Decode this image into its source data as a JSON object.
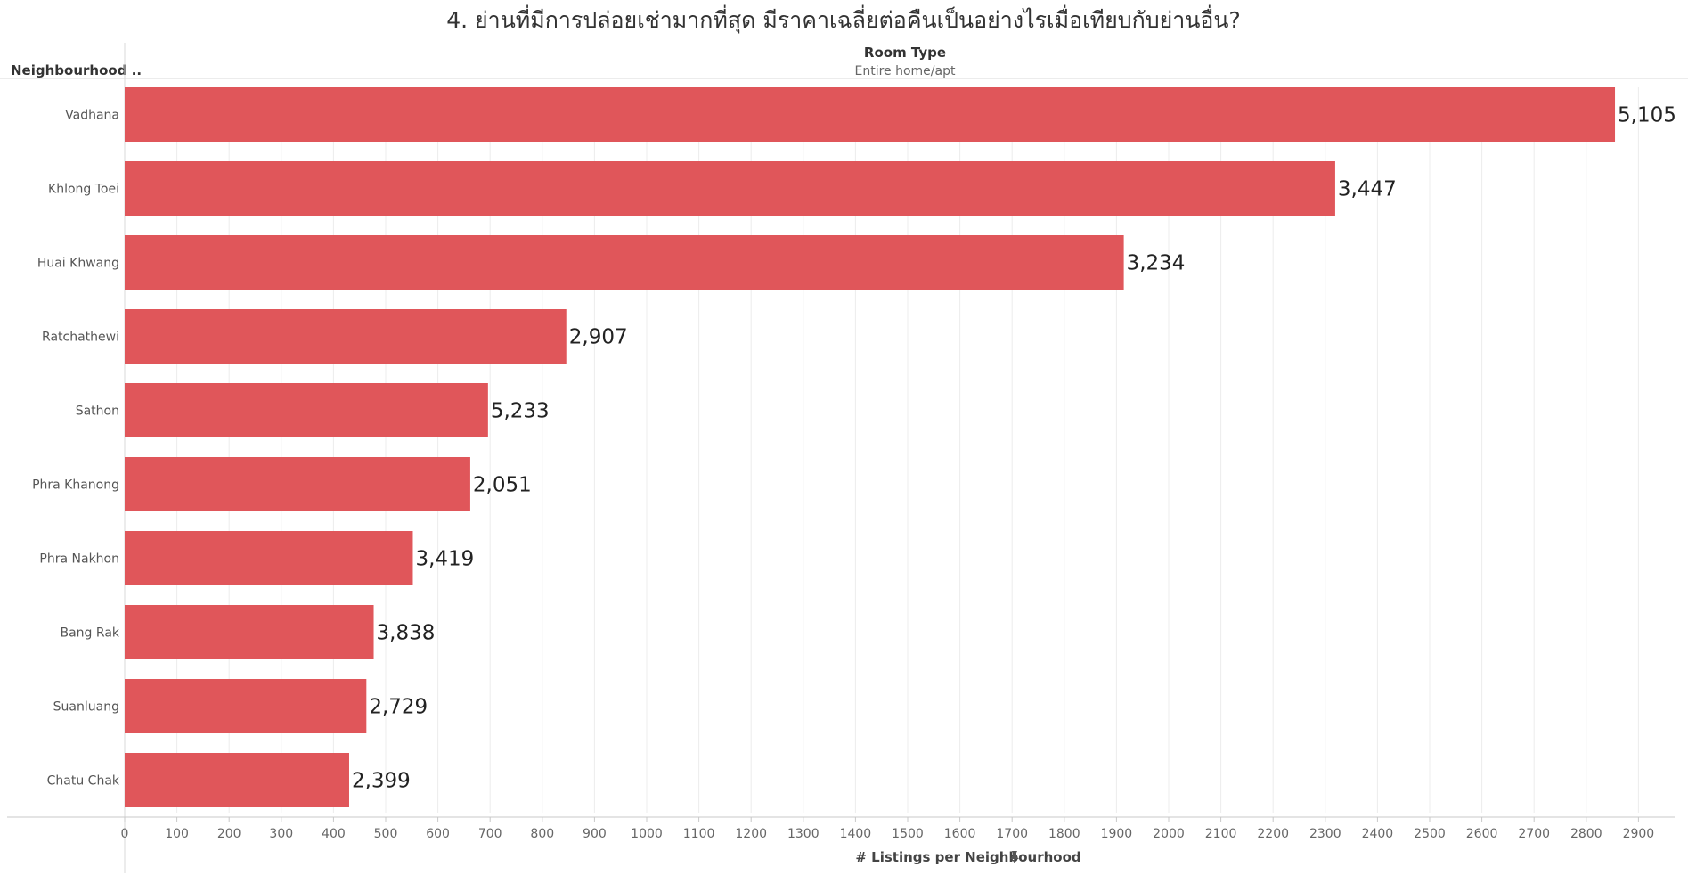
{
  "chart_data": {
    "type": "bar",
    "orientation": "horizontal",
    "title": "4. ย่านที่มีการปล่อยเช่ามากที่สุด มีราคาเฉลี่ยต่อคืนเป็นอย่างไรเมื่อเทียบกับย่านอื่น?",
    "row_header": "Neighbourhood ..",
    "column_header": "Room Type",
    "column_subheader": "Entire home/apt",
    "xlabel": "# Listings per Neighbourhood",
    "pin_icon": "pin-icon",
    "bar_color": "#E0565A",
    "xlim": [
      0,
      3000
    ],
    "xticks": [
      0,
      100,
      200,
      300,
      400,
      500,
      600,
      700,
      800,
      900,
      1000,
      1100,
      1200,
      1300,
      1400,
      1500,
      1600,
      1700,
      1800,
      1900,
      2000,
      2100,
      2200,
      2300,
      2400,
      2500,
      2600,
      2700,
      2800,
      2900
    ],
    "xtick_labels": [
      "0",
      "100",
      "200",
      "300",
      "400",
      "500",
      "600",
      "700",
      "800",
      "900",
      "1000",
      "1100",
      "1200",
      "1300",
      "1400",
      "1500",
      "1600",
      "1700",
      "1800",
      "1900",
      "2000",
      "2100",
      "2200",
      "2300",
      "2400",
      "2500",
      "2600",
      "2700",
      "2800",
      "2900"
    ],
    "grid": true,
    "categories": [
      "Vadhana",
      "Khlong Toei",
      "Huai Khwang",
      "Ratchathewi",
      "Sathon",
      "Phra Khanong",
      "Phra Nakhon",
      "Bang Rak",
      "Suanluang",
      "Chatu Chak"
    ],
    "values": [
      2855,
      2319,
      1914,
      846,
      696,
      662,
      552,
      477,
      463,
      430
    ],
    "labels": [
      "5,105",
      "3,447",
      "3,234",
      "2,907",
      "5,233",
      "2,051",
      "3,419",
      "3,838",
      "2,729",
      "2,399"
    ]
  }
}
